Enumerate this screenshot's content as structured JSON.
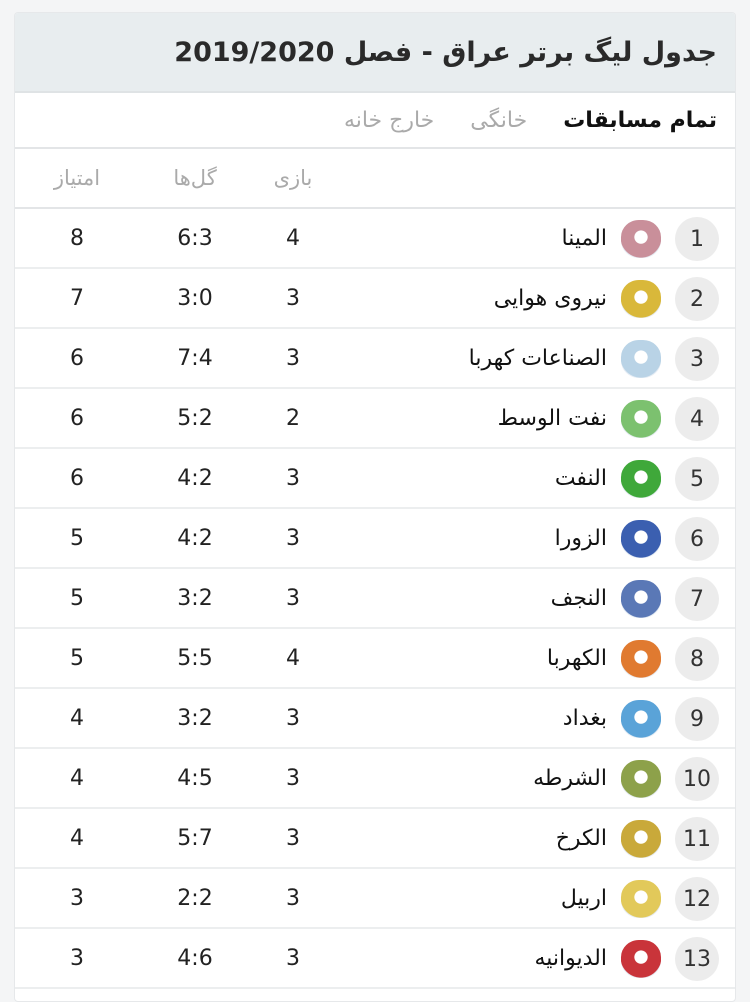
{
  "header": {
    "title": "جدول لیگ برتر عراق - فصل 2019/2020"
  },
  "tabs": [
    {
      "label": "تمام مسابقات",
      "active": true
    },
    {
      "label": "خانگی",
      "active": false
    },
    {
      "label": "خارج خانه",
      "active": false
    }
  ],
  "columns": {
    "played": "بازی",
    "goals": "گل‌ها",
    "points": "امتیاز"
  },
  "rows": [
    {
      "rank": "1",
      "team": "المینا",
      "played": "4",
      "goals": "6:3",
      "points": "8",
      "logo_color": "#c98f9a"
    },
    {
      "rank": "2",
      "team": "نیروی هوایی",
      "played": "3",
      "goals": "3:0",
      "points": "7",
      "logo_color": "#d9b83a"
    },
    {
      "rank": "3",
      "team": "الصناعات کهربا",
      "played": "3",
      "goals": "7:4",
      "points": "6",
      "logo_color": "#b9d3e6"
    },
    {
      "rank": "4",
      "team": "نفت الوسط",
      "played": "2",
      "goals": "5:2",
      "points": "6",
      "logo_color": "#7cc16f"
    },
    {
      "rank": "5",
      "team": "النفت",
      "played": "3",
      "goals": "4:2",
      "points": "6",
      "logo_color": "#3fa83a"
    },
    {
      "rank": "6",
      "team": "الزورا",
      "played": "3",
      "goals": "4:2",
      "points": "5",
      "logo_color": "#3b5fb0"
    },
    {
      "rank": "7",
      "team": "النجف",
      "played": "3",
      "goals": "3:2",
      "points": "5",
      "logo_color": "#5a78b6"
    },
    {
      "rank": "8",
      "team": "الکهربا",
      "played": "4",
      "goals": "5:5",
      "points": "5",
      "logo_color": "#e07a30"
    },
    {
      "rank": "9",
      "team": "بغداد",
      "played": "3",
      "goals": "3:2",
      "points": "4",
      "logo_color": "#5aa3d8"
    },
    {
      "rank": "10",
      "team": "الشرطه",
      "played": "3",
      "goals": "4:5",
      "points": "4",
      "logo_color": "#8da14a"
    },
    {
      "rank": "11",
      "team": "الکرخ",
      "played": "3",
      "goals": "5:7",
      "points": "4",
      "logo_color": "#c9a93a"
    },
    {
      "rank": "12",
      "team": "اربیل",
      "played": "3",
      "goals": "2:2",
      "points": "3",
      "logo_color": "#e2c95a"
    },
    {
      "rank": "13",
      "team": "الدیوانیه",
      "played": "3",
      "goals": "4:6",
      "points": "3",
      "logo_color": "#c9343a"
    }
  ]
}
